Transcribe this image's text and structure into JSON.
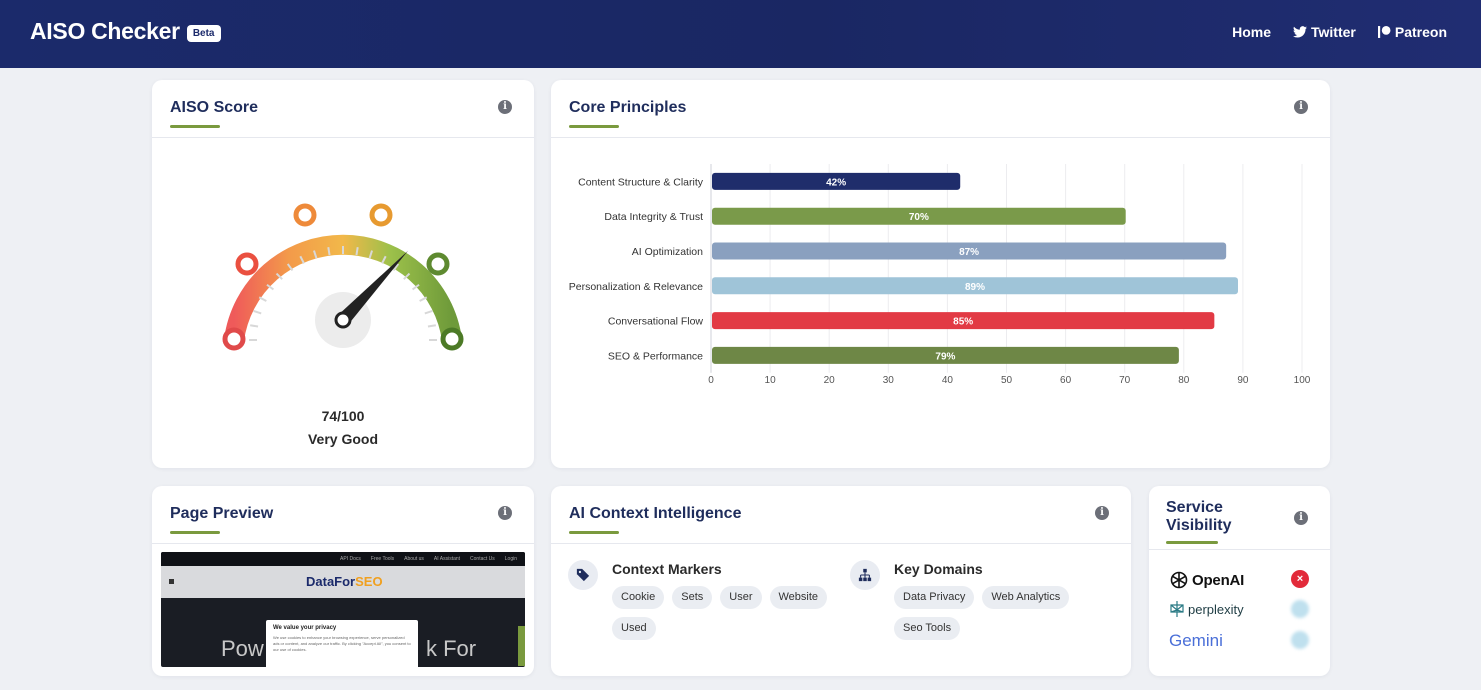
{
  "app": {
    "title": "AISO Checker",
    "badge": "Beta"
  },
  "nav": {
    "home": "Home",
    "twitter": "Twitter",
    "patreon": "Patreon"
  },
  "aiso_score": {
    "title": "AISO Score",
    "score_text": "74/100",
    "score": 74,
    "max": 100,
    "rating": "Very Good"
  },
  "core_principles": {
    "title": "Core Principles",
    "chart_data": {
      "type": "bar",
      "orientation": "horizontal",
      "title": "",
      "categories": [
        "Content Structure & Clarity",
        "Data Integrity & Trust",
        "AI Optimization",
        "Personalization & Relevance",
        "Conversational Flow",
        "SEO & Performance"
      ],
      "values": [
        42,
        70,
        87,
        89,
        85,
        79
      ],
      "value_labels": [
        "42%",
        "70%",
        "87%",
        "89%",
        "85%",
        "79%"
      ],
      "colors": [
        "#1f2d6b",
        "#7a9a4a",
        "#8aa0bf",
        "#9fc4d8",
        "#e23a44",
        "#6e8746"
      ],
      "xlim": [
        0,
        100
      ],
      "xticks": [
        "0",
        "10",
        "20",
        "30",
        "40",
        "50",
        "60",
        "70",
        "80",
        "90",
        "100"
      ],
      "grid": true,
      "legend": "none"
    }
  },
  "page_preview": {
    "title": "Page Preview",
    "top_links": [
      "API Docs",
      "Free Tools",
      "About us",
      "AI Assistant",
      "Contact Us",
      "Login"
    ],
    "logo_text_1": "DataFor",
    "logo_text_2": "SEO",
    "hero_left": "Pow",
    "hero_right": "k For",
    "cookie_title": "We value your privacy",
    "cookie_text": "We use cookies to enhance your browsing experience, serve personalized ads or content, and analyze our traffic. By clicking \"Accept All\", you consent to our use of cookies."
  },
  "ai_context": {
    "title": "AI Context Intelligence",
    "markers_heading": "Context Markers",
    "markers": [
      "Cookie",
      "Sets",
      "User",
      "Website",
      "Used"
    ],
    "domains_heading": "Key Domains",
    "domains": [
      "Data Privacy",
      "Web Analytics",
      "Seo Tools"
    ]
  },
  "service_visibility": {
    "title": "Service Visibility",
    "services": [
      {
        "name": "OpenAI",
        "status": "not-visible"
      },
      {
        "name": "perplexity",
        "status": "loading"
      },
      {
        "name": "Gemini",
        "status": "loading"
      }
    ]
  },
  "colors": {
    "nav": "#1b2a6b",
    "accent": "#7a9a3e",
    "error": "#e22a3a"
  }
}
